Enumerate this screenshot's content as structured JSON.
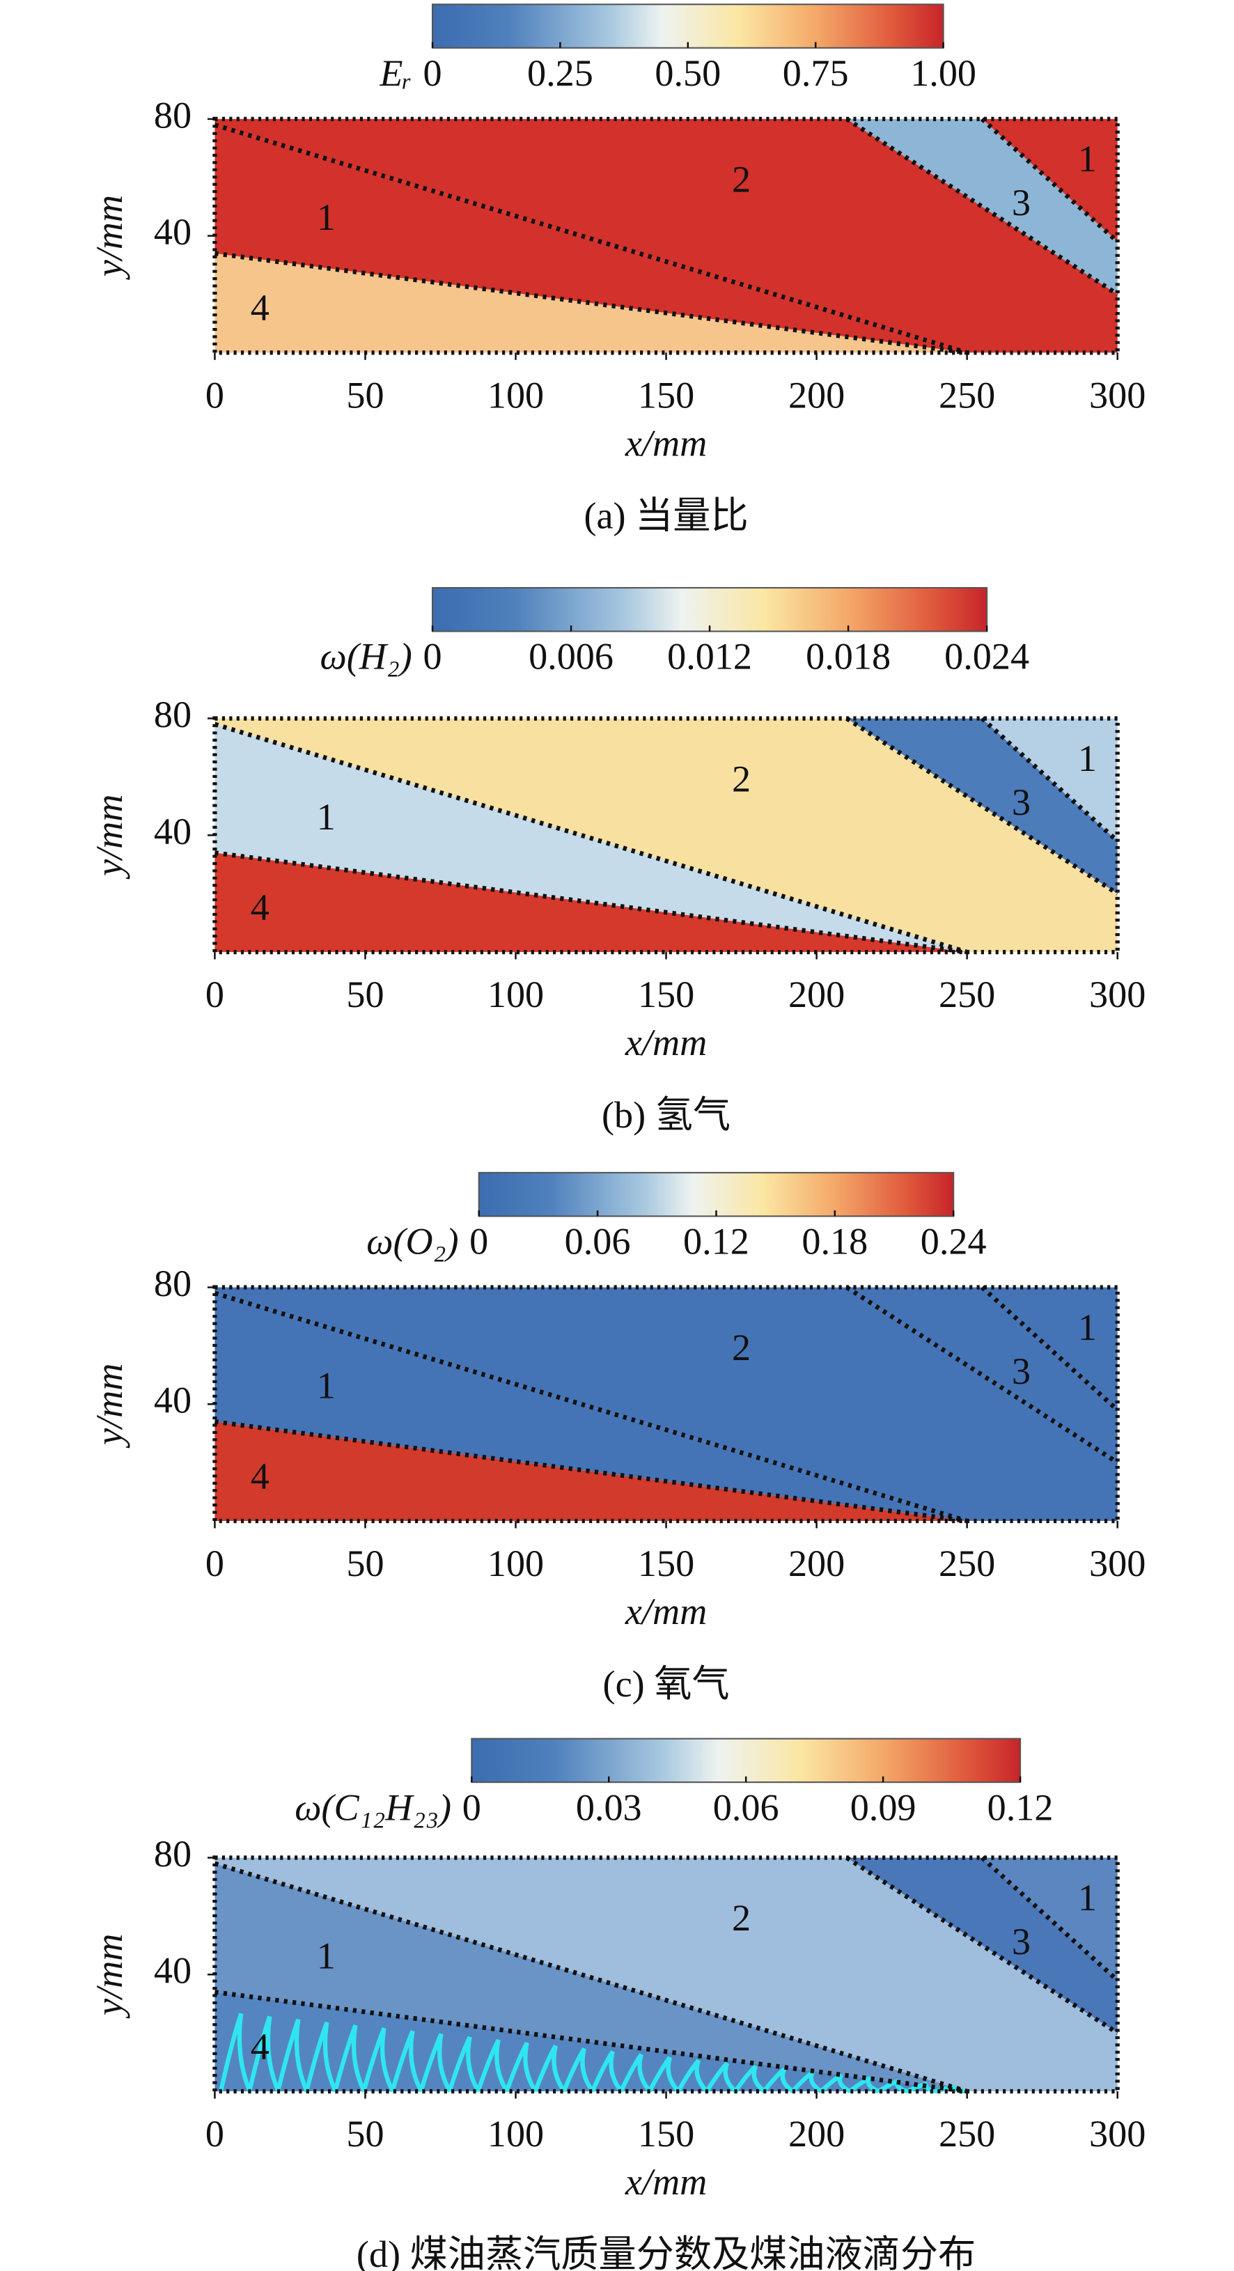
{
  "chart_data": [
    {
      "type": "contour",
      "colorbar_label": "Eᵣ",
      "colorbar_lim": [
        0,
        1
      ],
      "colorbar_ticks": [
        0,
        {
          "value": 0.25,
          "label": "0.25"
        },
        {
          "value": 0.5,
          "label": "0.50"
        },
        {
          "value": 0.75,
          "label": "0.75"
        },
        {
          "value": 1,
          "label": "1.00"
        }
      ],
      "xlabel": "x/mm",
      "ylabel": "y/mm",
      "xlim": [
        0,
        300
      ],
      "xticks": [
        0,
        50,
        100,
        150,
        200,
        250,
        300
      ],
      "ylim": [
        0,
        80
      ],
      "yticks": [
        40,
        80
      ],
      "regions": [
        "1",
        "2",
        "3",
        "1",
        "4"
      ],
      "caption": "(a) 当量比"
    },
    {
      "type": "contour",
      "colorbar_label": "ω(H₂)",
      "colorbar_lim": [
        0,
        0.024
      ],
      "colorbar_ticks": [
        0,
        0.006,
        0.012,
        0.018,
        0.024
      ],
      "xlabel": "x/mm",
      "ylabel": "y/mm",
      "xlim": [
        0,
        300
      ],
      "xticks": [
        0,
        50,
        100,
        150,
        200,
        250,
        300
      ],
      "ylim": [
        0,
        80
      ],
      "yticks": [
        40,
        80
      ],
      "regions": [
        "1",
        "2",
        "3",
        "1",
        "4"
      ],
      "caption": "(b) 氢气"
    },
    {
      "type": "contour",
      "colorbar_label": "ω(O₂)",
      "colorbar_lim": [
        0,
        0.24
      ],
      "colorbar_ticks": [
        0,
        0.06,
        0.12,
        0.18,
        0.24
      ],
      "xlabel": "x/mm",
      "ylabel": "y/mm",
      "xlim": [
        0,
        300
      ],
      "xticks": [
        0,
        50,
        100,
        150,
        200,
        250,
        300
      ],
      "ylim": [
        0,
        80
      ],
      "yticks": [
        40,
        80
      ],
      "regions": [
        "1",
        "2",
        "3",
        "1",
        "4"
      ],
      "caption": "(c) 氧气"
    },
    {
      "type": "contour",
      "colorbar_label": "ω(C₁₂H₂₃)",
      "colorbar_lim": [
        0,
        0.12
      ],
      "colorbar_ticks": [
        0,
        0.03,
        0.06,
        0.09,
        0.12
      ],
      "xlabel": "x/mm",
      "ylabel": "y/mm",
      "xlim": [
        0,
        300
      ],
      "xticks": [
        0,
        50,
        100,
        150,
        200,
        250,
        300
      ],
      "ylim": [
        0,
        80
      ],
      "yticks": [
        40,
        80
      ],
      "regions": [
        "1",
        "2",
        "3",
        "1",
        "4"
      ],
      "caption": "(d) 煤油蒸汽质量分数及煤油液滴分布"
    }
  ]
}
